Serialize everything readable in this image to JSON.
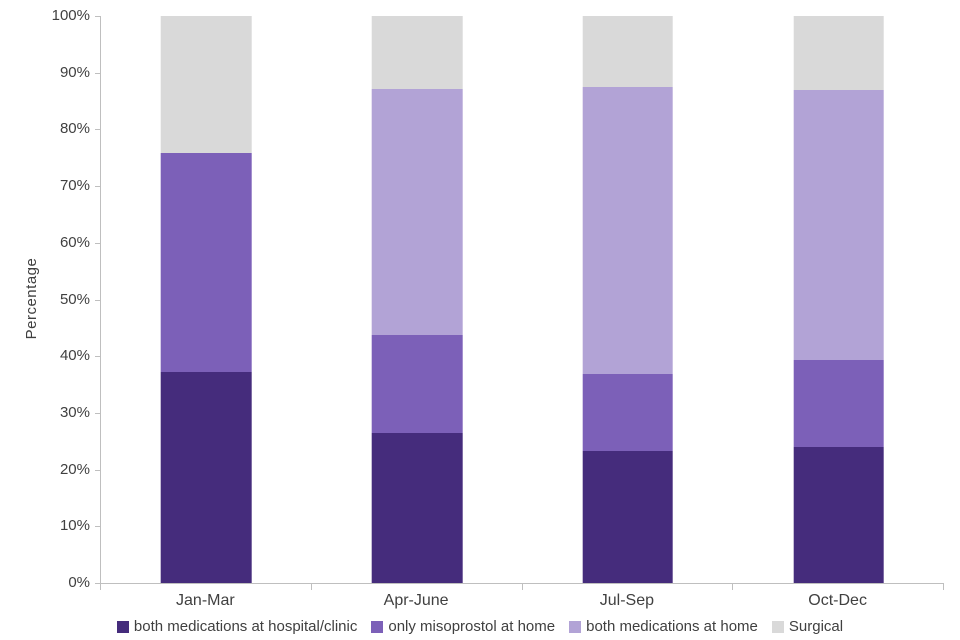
{
  "chart_data": {
    "type": "bar",
    "stacked": true,
    "title": "",
    "xlabel": "",
    "ylabel": "Percentage",
    "ylim": [
      0,
      100
    ],
    "y_tick_step": 10,
    "y_tick_suffix": "%",
    "grid": false,
    "legend_position": "bottom",
    "categories": [
      "Jan-Mar",
      "Apr-June",
      "Jul-Sep",
      "Oct-Dec"
    ],
    "series": [
      {
        "name": "both medications at hospital/clinic",
        "color": "#452c7c",
        "values": [
          37.3,
          26.5,
          23.2,
          24.0
        ]
      },
      {
        "name": "only misoprostol at home",
        "color": "#7c60b8",
        "values": [
          38.5,
          17.3,
          13.6,
          15.4
        ]
      },
      {
        "name": "both medications at home",
        "color": "#b2a3d6",
        "values": [
          0.0,
          43.3,
          50.6,
          47.5
        ]
      },
      {
        "name": "Surgical",
        "color": "#d9d9d9",
        "values": [
          24.2,
          12.9,
          12.6,
          13.1
        ]
      }
    ]
  }
}
